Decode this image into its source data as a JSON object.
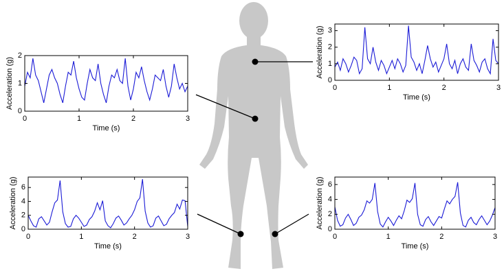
{
  "chart_data": [
    {
      "type": "line",
      "xlabel": "Time (s)",
      "ylabel": "Acceleration (g)",
      "color": "#1a1ad6",
      "xlim": [
        0,
        3
      ],
      "xticks": [
        0,
        1,
        2,
        3
      ],
      "ylim": [
        0,
        2
      ],
      "yticks": [
        0,
        1,
        2
      ],
      "x": [
        0,
        0.05,
        0.1,
        0.15,
        0.2,
        0.25,
        0.3,
        0.35,
        0.4,
        0.45,
        0.5,
        0.55,
        0.6,
        0.65,
        0.7,
        0.75,
        0.8,
        0.85,
        0.9,
        0.95,
        1,
        1.05,
        1.1,
        1.15,
        1.2,
        1.25,
        1.3,
        1.35,
        1.4,
        1.45,
        1.5,
        1.55,
        1.6,
        1.65,
        1.7,
        1.75,
        1.8,
        1.85,
        1.9,
        1.95,
        2,
        2.05,
        2.1,
        2.15,
        2.2,
        2.25,
        2.3,
        2.35,
        2.4,
        2.45,
        2.5,
        2.55,
        2.6,
        2.65,
        2.7,
        2.75,
        2.8,
        2.85,
        2.9,
        2.95,
        3
      ],
      "values": [
        0.9,
        1.4,
        1.2,
        1.9,
        1.3,
        1.1,
        0.7,
        0.3,
        0.8,
        1.3,
        1.5,
        1.2,
        1.0,
        0.6,
        0.3,
        0.9,
        1.4,
        1.3,
        1.8,
        1.2,
        0.8,
        0.5,
        0.4,
        1.0,
        1.5,
        1.2,
        1.1,
        1.7,
        1.0,
        0.6,
        0.3,
        0.9,
        1.3,
        1.2,
        1.5,
        1.1,
        1.0,
        1.9,
        0.9,
        0.4,
        0.8,
        1.4,
        1.2,
        1.6,
        1.1,
        0.7,
        0.4,
        0.8,
        1.3,
        1.2,
        1.1,
        1.5,
        0.9,
        0.5,
        0.9,
        1.7,
        1.2,
        0.8,
        1.0,
        0.7,
        0.9
      ]
    },
    {
      "type": "line",
      "xlabel": "Time (s)",
      "ylabel": "Acceleration (g)",
      "color": "#1a1ad6",
      "xlim": [
        0,
        3
      ],
      "xticks": [
        0,
        1,
        2,
        3
      ],
      "ylim": [
        0,
        3.4
      ],
      "yticks": [
        0,
        1,
        2,
        3
      ],
      "x": [
        0,
        0.05,
        0.1,
        0.15,
        0.2,
        0.25,
        0.3,
        0.35,
        0.4,
        0.45,
        0.5,
        0.55,
        0.6,
        0.65,
        0.7,
        0.75,
        0.8,
        0.85,
        0.9,
        0.95,
        1,
        1.05,
        1.1,
        1.15,
        1.2,
        1.25,
        1.3,
        1.35,
        1.4,
        1.45,
        1.5,
        1.55,
        1.6,
        1.65,
        1.7,
        1.75,
        1.8,
        1.85,
        1.9,
        1.95,
        2,
        2.05,
        2.1,
        2.15,
        2.2,
        2.25,
        2.3,
        2.35,
        2.4,
        2.45,
        2.5,
        2.55,
        2.6,
        2.65,
        2.7,
        2.75,
        2.8,
        2.85,
        2.9,
        2.95,
        3
      ],
      "values": [
        0.8,
        1.1,
        0.6,
        1.3,
        1.0,
        0.5,
        0.9,
        1.4,
        1.2,
        0.4,
        0.7,
        3.2,
        1.3,
        1.0,
        2.0,
        1.1,
        0.6,
        1.2,
        0.9,
        0.4,
        0.8,
        1.2,
        0.7,
        1.3,
        1.0,
        0.5,
        0.9,
        3.3,
        1.4,
        1.1,
        0.6,
        1.0,
        0.4,
        1.2,
        2.1,
        1.3,
        0.8,
        1.1,
        0.5,
        0.9,
        1.3,
        2.2,
        1.0,
        0.7,
        1.2,
        0.4,
        1.0,
        1.3,
        0.8,
        0.6,
        2.2,
        1.2,
        0.9,
        0.5,
        1.1,
        1.3,
        0.7,
        0.4,
        2.5,
        1.2,
        1.0
      ]
    },
    {
      "type": "line",
      "xlabel": "Time (s)",
      "ylabel": "Acceleration (g)",
      "color": "#1a1ad6",
      "xlim": [
        0,
        3
      ],
      "xticks": [
        0,
        1,
        2,
        3
      ],
      "ylim": [
        0,
        7.5
      ],
      "yticks": [
        0,
        2,
        4,
        6
      ],
      "x": [
        0,
        0.05,
        0.1,
        0.15,
        0.2,
        0.25,
        0.3,
        0.35,
        0.4,
        0.45,
        0.5,
        0.55,
        0.6,
        0.65,
        0.7,
        0.75,
        0.8,
        0.85,
        0.9,
        0.95,
        1,
        1.05,
        1.1,
        1.15,
        1.2,
        1.25,
        1.3,
        1.35,
        1.4,
        1.45,
        1.5,
        1.55,
        1.6,
        1.65,
        1.7,
        1.75,
        1.8,
        1.85,
        1.9,
        1.95,
        2,
        2.05,
        2.1,
        2.15,
        2.2,
        2.25,
        2.3,
        2.35,
        2.4,
        2.45,
        2.5,
        2.55,
        2.6,
        2.65,
        2.7,
        2.75,
        2.8,
        2.85,
        2.9,
        2.95,
        3
      ],
      "values": [
        2.0,
        1.2,
        0.5,
        0.3,
        1.5,
        1.8,
        1.2,
        0.6,
        1.0,
        2.5,
        3.8,
        4.2,
        7.0,
        2.5,
        0.8,
        0.3,
        0.4,
        1.5,
        2.0,
        1.6,
        1.0,
        0.4,
        0.6,
        1.4,
        1.8,
        2.6,
        3.8,
        2.8,
        4.1,
        1.2,
        0.5,
        0.2,
        0.8,
        1.6,
        1.9,
        1.3,
        0.6,
        0.9,
        1.5,
        2.0,
        2.8,
        4.0,
        4.5,
        7.2,
        2.6,
        0.9,
        0.3,
        0.5,
        1.6,
        1.9,
        1.2,
        0.5,
        0.7,
        1.5,
        2.0,
        2.4,
        3.6,
        2.9,
        4.2,
        4.1,
        0.4
      ]
    },
    {
      "type": "line",
      "xlabel": "Time (s)",
      "ylabel": "Acceleration (g)",
      "color": "#1a1ad6",
      "xlim": [
        0,
        3
      ],
      "xticks": [
        0,
        1,
        2,
        3
      ],
      "ylim": [
        0,
        7
      ],
      "yticks": [
        0,
        2,
        4,
        6
      ],
      "x": [
        0,
        0.05,
        0.1,
        0.15,
        0.2,
        0.25,
        0.3,
        0.35,
        0.4,
        0.45,
        0.5,
        0.55,
        0.6,
        0.65,
        0.7,
        0.75,
        0.8,
        0.85,
        0.9,
        0.95,
        1,
        1.05,
        1.1,
        1.15,
        1.2,
        1.25,
        1.3,
        1.35,
        1.4,
        1.45,
        1.5,
        1.55,
        1.6,
        1.65,
        1.7,
        1.75,
        1.8,
        1.85,
        1.9,
        1.95,
        2,
        2.05,
        2.1,
        2.15,
        2.2,
        2.25,
        2.3,
        2.35,
        2.4,
        2.45,
        2.5,
        2.55,
        2.6,
        2.65,
        2.7,
        2.75,
        2.8,
        2.85,
        2.9,
        2.95,
        3
      ],
      "values": [
        3.0,
        1.2,
        0.4,
        0.6,
        1.5,
        2.0,
        1.3,
        0.5,
        0.8,
        1.6,
        1.9,
        2.6,
        3.8,
        3.5,
        4.0,
        6.2,
        2.4,
        0.7,
        0.3,
        1.0,
        1.6,
        1.1,
        0.5,
        1.2,
        1.8,
        1.4,
        2.5,
        3.9,
        3.6,
        4.1,
        6.2,
        2.0,
        0.6,
        0.4,
        1.3,
        1.7,
        1.0,
        0.5,
        1.1,
        1.7,
        1.5,
        2.7,
        3.8,
        3.4,
        4.0,
        4.4,
        6.3,
        2.2,
        0.5,
        0.3,
        1.2,
        1.6,
        0.9,
        0.6,
        1.3,
        1.8,
        1.2,
        0.6,
        1.1,
        1.9,
        2.9
      ]
    }
  ]
}
